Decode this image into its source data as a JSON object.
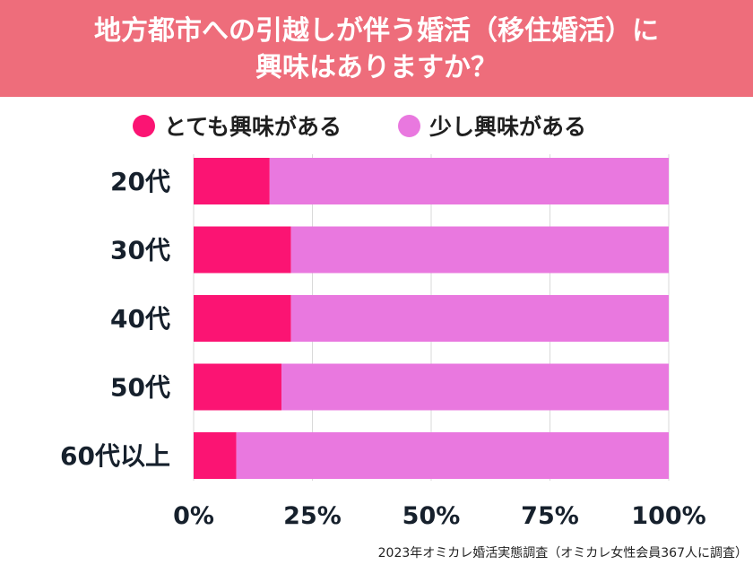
{
  "header": {
    "title_line1": "地方都市への引越しが伴う婚活（移住婚活）に",
    "title_line2": "興味はありますか？"
  },
  "footnote": "2023年オミカレ婚活実態調査（オミカレ女性会員367人に調査）",
  "colors": {
    "header_bg": "#ee6d7b",
    "series_very": "#fb1473",
    "series_little": "#e978df"
  },
  "chart_data": {
    "type": "bar",
    "orientation": "horizontal",
    "stacked": true,
    "categories": [
      "20代",
      "30代",
      "40代",
      "50代",
      "60代以上"
    ],
    "series": [
      {
        "name": "とても興味がある",
        "color": "#fb1473",
        "values": [
          16,
          20.5,
          20.5,
          18.5,
          9
        ]
      },
      {
        "name": "少し興味がある",
        "color": "#e978df",
        "values": [
          84,
          79.5,
          79.5,
          81.5,
          91
        ]
      }
    ],
    "xlim": [
      0,
      100
    ],
    "xticks": [
      "0%",
      "25%",
      "50%",
      "75%",
      "100%"
    ],
    "grid": true,
    "legend_position": "top"
  }
}
